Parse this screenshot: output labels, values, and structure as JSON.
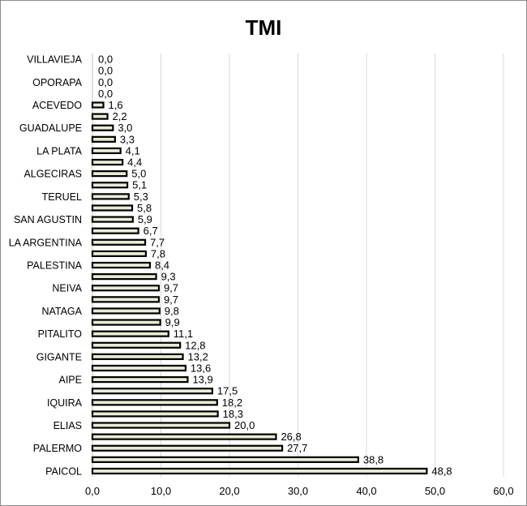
{
  "chart_data": {
    "type": "bar",
    "orientation": "horizontal",
    "title": "TMI",
    "xlabel": "",
    "ylabel": "",
    "xlim": [
      0,
      60
    ],
    "x_ticks": [
      "0,0",
      "10,0",
      "20,0",
      "30,0",
      "40,0",
      "50,0",
      "60,0"
    ],
    "grid": true,
    "legend": "none",
    "bar_color": "#e6ecd5",
    "bar_edge_color": "#000000",
    "bars": [
      {
        "category": "VILLAVIEJA",
        "value": 0.0,
        "label": "0,0"
      },
      {
        "category": "",
        "value": 0.0,
        "label": "0,0"
      },
      {
        "category": "OPORAPA",
        "value": 0.0,
        "label": "0,0"
      },
      {
        "category": "",
        "value": 0.0,
        "label": "0,0"
      },
      {
        "category": "ACEVEDO",
        "value": 1.6,
        "label": "1,6"
      },
      {
        "category": "",
        "value": 2.2,
        "label": "2,2"
      },
      {
        "category": "GUADALUPE",
        "value": 3.0,
        "label": "3,0"
      },
      {
        "category": "",
        "value": 3.3,
        "label": "3,3"
      },
      {
        "category": "LA PLATA",
        "value": 4.1,
        "label": "4,1"
      },
      {
        "category": "",
        "value": 4.4,
        "label": "4,4"
      },
      {
        "category": "ALGECIRAS",
        "value": 5.0,
        "label": "5,0"
      },
      {
        "category": "",
        "value": 5.1,
        "label": "5,1"
      },
      {
        "category": "TERUEL",
        "value": 5.3,
        "label": "5,3"
      },
      {
        "category": "",
        "value": 5.8,
        "label": "5,8"
      },
      {
        "category": "SAN AGUSTIN",
        "value": 5.9,
        "label": "5,9"
      },
      {
        "category": "",
        "value": 6.7,
        "label": "6,7"
      },
      {
        "category": "LA ARGENTINA",
        "value": 7.7,
        "label": "7,7"
      },
      {
        "category": "",
        "value": 7.8,
        "label": "7,8"
      },
      {
        "category": "PALESTINA",
        "value": 8.4,
        "label": "8,4"
      },
      {
        "category": "",
        "value": 9.3,
        "label": "9,3"
      },
      {
        "category": "NEIVA",
        "value": 9.7,
        "label": "9,7"
      },
      {
        "category": "",
        "value": 9.7,
        "label": "9,7"
      },
      {
        "category": "NATAGA",
        "value": 9.8,
        "label": "9,8"
      },
      {
        "category": "",
        "value": 9.9,
        "label": "9,9"
      },
      {
        "category": "PITALITO",
        "value": 11.1,
        "label": "11,1"
      },
      {
        "category": "",
        "value": 12.8,
        "label": "12,8"
      },
      {
        "category": "GIGANTE",
        "value": 13.2,
        "label": "13,2"
      },
      {
        "category": "",
        "value": 13.6,
        "label": "13,6"
      },
      {
        "category": "AIPE",
        "value": 13.9,
        "label": "13,9"
      },
      {
        "category": "",
        "value": 17.5,
        "label": "17,5"
      },
      {
        "category": "IQUIRA",
        "value": 18.2,
        "label": "18,2"
      },
      {
        "category": "",
        "value": 18.3,
        "label": "18,3"
      },
      {
        "category": "ELIAS",
        "value": 20.0,
        "label": "20,0"
      },
      {
        "category": "",
        "value": 26.8,
        "label": "26,8"
      },
      {
        "category": "PALERMO",
        "value": 27.7,
        "label": "27,7"
      },
      {
        "category": "",
        "value": 38.8,
        "label": "38,8"
      },
      {
        "category": "PAICOL",
        "value": 48.8,
        "label": "48,8"
      }
    ]
  }
}
